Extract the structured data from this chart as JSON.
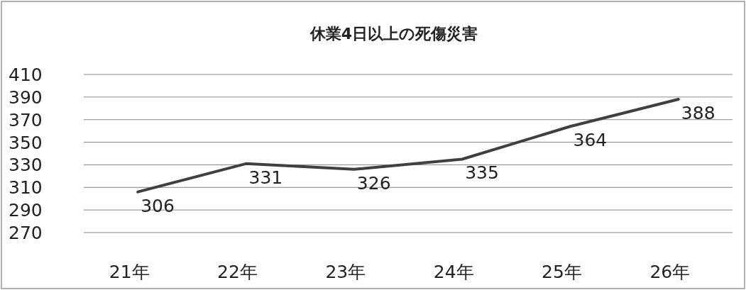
{
  "chart_data": {
    "type": "line",
    "title": "休業4日以上の死傷災害",
    "categories": [
      "21年",
      "22年",
      "23年",
      "24年",
      "25年",
      "26年"
    ],
    "values": [
      306,
      331,
      326,
      335,
      364,
      388
    ],
    "color": "#404040",
    "ylim": [
      270,
      410
    ],
    "yticks": [
      270,
      290,
      310,
      330,
      350,
      370,
      390,
      410
    ],
    "grid": "y",
    "data_labels": true,
    "marker": "none"
  }
}
